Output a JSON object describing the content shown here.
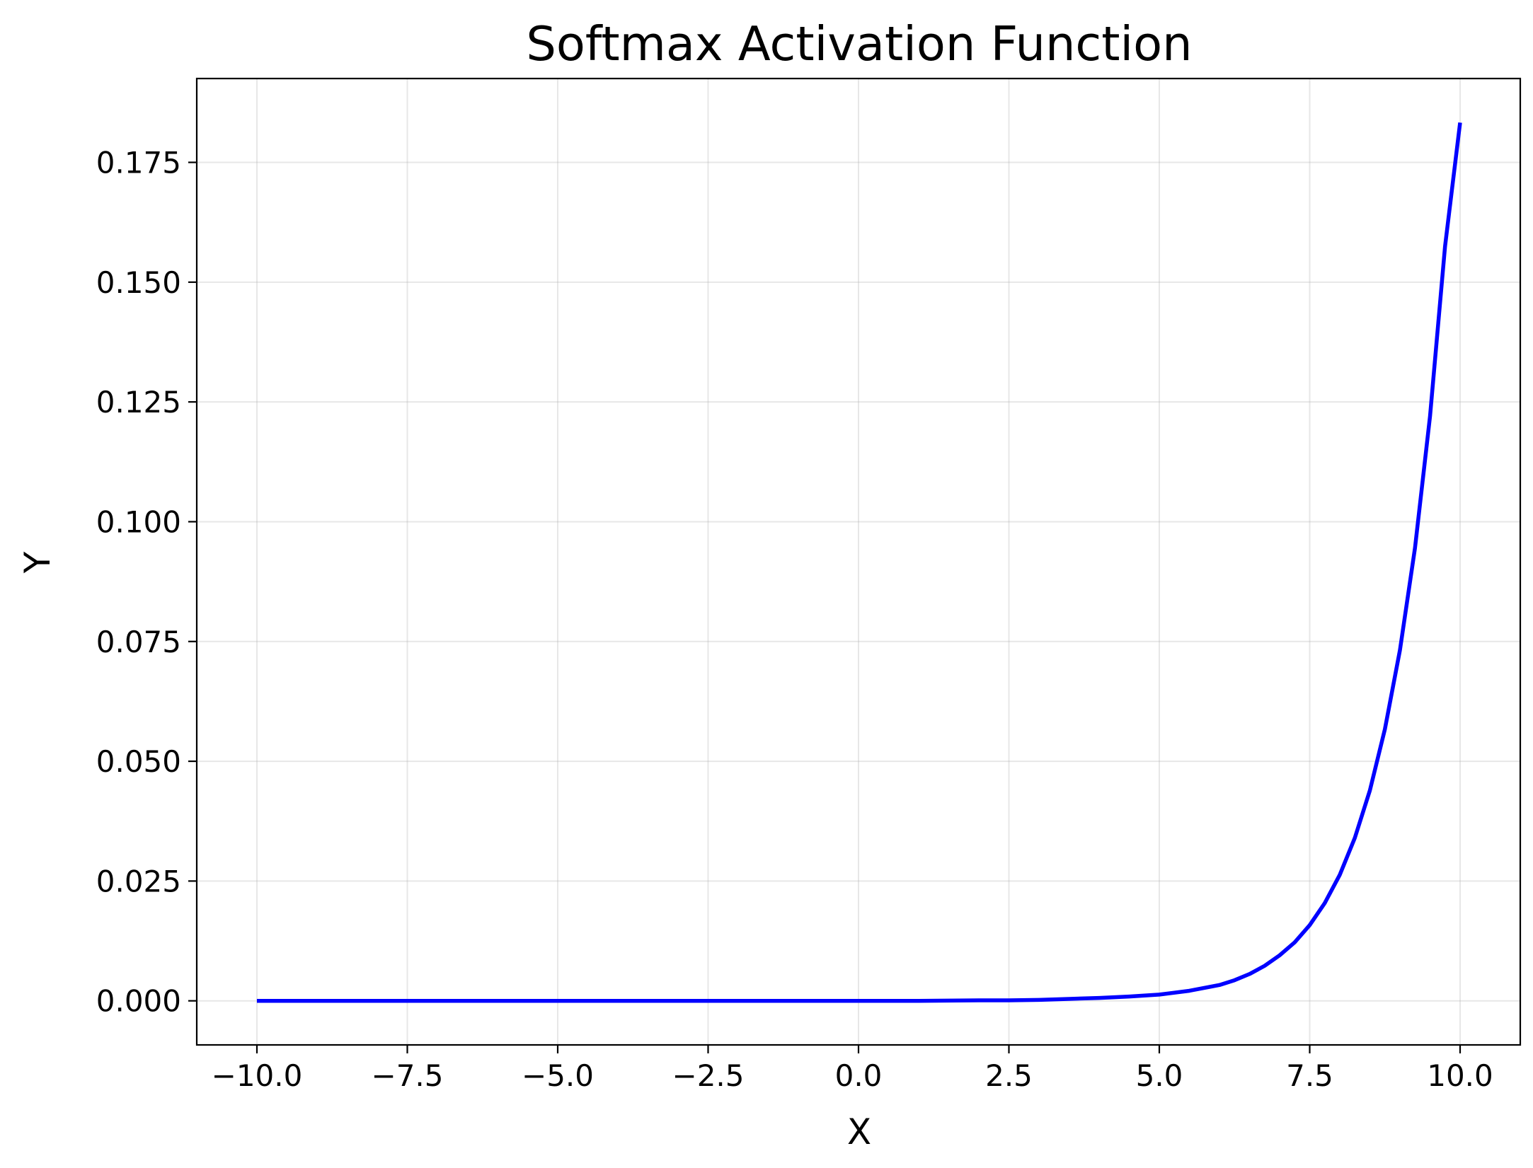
{
  "chart_data": {
    "type": "line",
    "title": "Softmax Activation Function",
    "xlabel": "X",
    "ylabel": "Y",
    "xlim": [
      -11.0,
      11.0
    ],
    "ylim": [
      -0.0092,
      0.1925
    ],
    "grid": true,
    "x_ticks": [
      -10.0,
      -7.5,
      -5.0,
      -2.5,
      0.0,
      2.5,
      5.0,
      7.5,
      10.0
    ],
    "x_tick_labels": [
      "−10.0",
      "−7.5",
      "−5.0",
      "−2.5",
      "0.0",
      "2.5",
      "5.0",
      "7.5",
      "10.0"
    ],
    "y_ticks": [
      0.0,
      0.025,
      0.05,
      0.075,
      0.1,
      0.125,
      0.15,
      0.175
    ],
    "y_tick_labels": [
      "0.000",
      "0.025",
      "0.050",
      "0.075",
      "0.100",
      "0.125",
      "0.150",
      "0.175"
    ],
    "series": [
      {
        "color": "#0000ff",
        "x": [
          -10.0,
          -9.0,
          -8.0,
          -7.0,
          -6.0,
          -5.0,
          -4.0,
          -3.0,
          -2.0,
          -1.0,
          0.0,
          1.0,
          2.0,
          2.5,
          3.0,
          3.5,
          4.0,
          4.5,
          5.0,
          5.5,
          6.0,
          6.25,
          6.5,
          6.75,
          7.0,
          7.25,
          7.5,
          7.75,
          8.0,
          8.25,
          8.5,
          8.75,
          9.0,
          9.25,
          9.5,
          9.75,
          10.0
        ],
        "y": [
          0.0,
          0.0,
          0.0,
          0.0,
          0.0,
          0.0,
          0.0,
          0.0,
          0.0,
          0.0,
          0.0,
          0.0,
          0.0001,
          0.0001,
          0.0002,
          0.0004,
          0.0006,
          0.0009,
          0.0013,
          0.0021,
          0.0033,
          0.0043,
          0.0056,
          0.0073,
          0.0095,
          0.0122,
          0.0158,
          0.0204,
          0.0263,
          0.034,
          0.0439,
          0.0567,
          0.0732,
          0.0945,
          0.122,
          0.1575,
          0.1833
        ]
      }
    ]
  }
}
